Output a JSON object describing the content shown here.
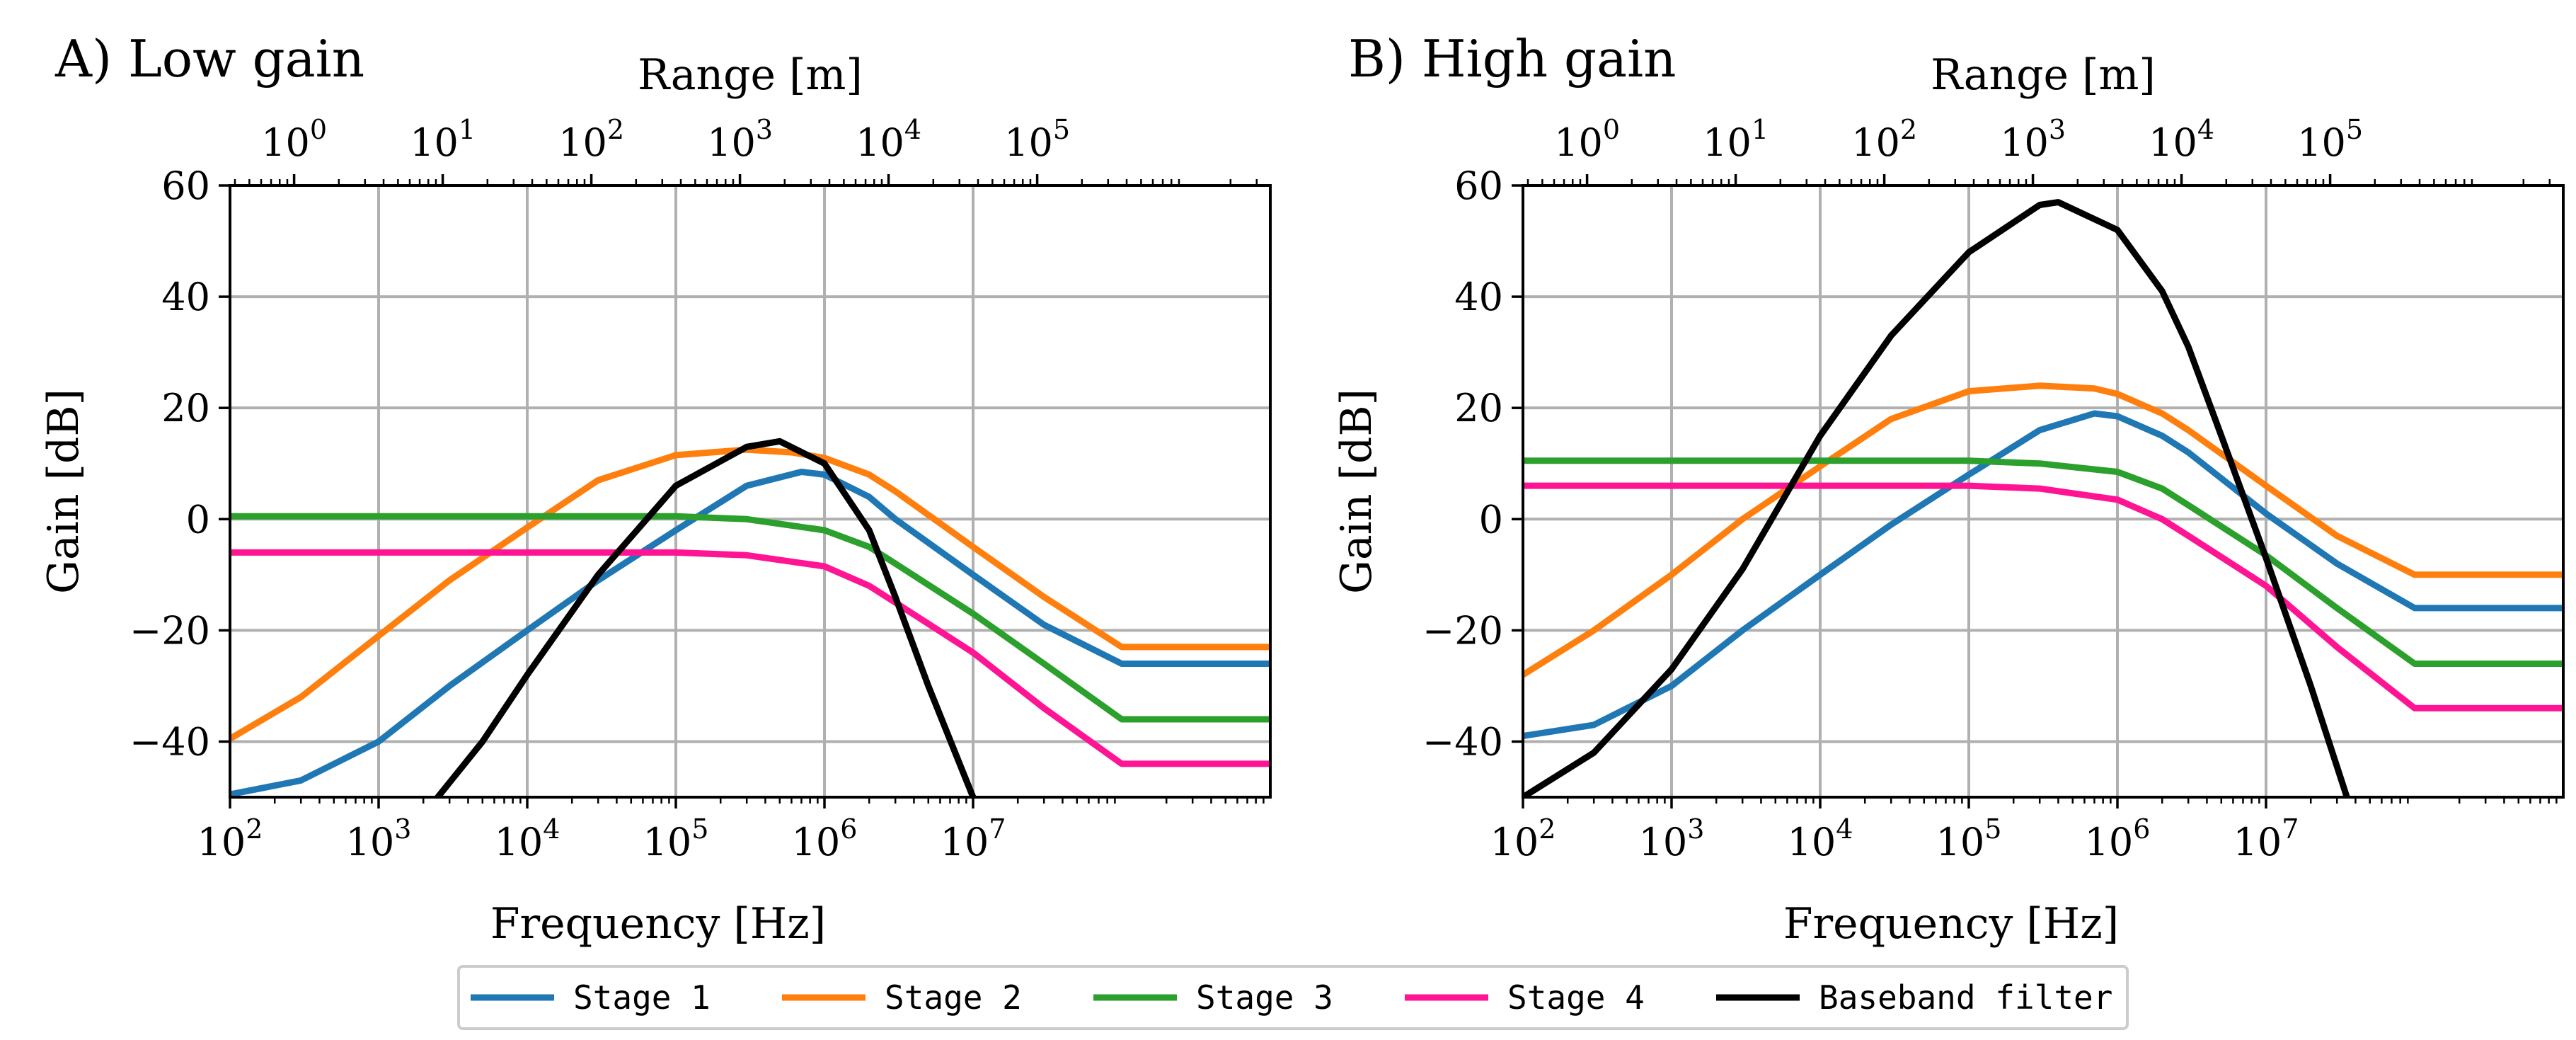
{
  "figure": {
    "legend_placement": "bottom-center, below both panels"
  },
  "series_colors": {
    "Stage 1": "#1f77b4",
    "Stage 2": "#ff7f0e",
    "Stage 3": "#2ca02c",
    "Stage 4": "#ff1493",
    "Baseband filter": "#000000"
  },
  "chart_data": [
    {
      "type": "line",
      "title": "A) Low gain",
      "xlabel": "Frequency [Hz]",
      "ylabel": "Gain [dB]",
      "top_xlabel": "Range [m]",
      "xscale": "log",
      "xlim": [
        100,
        1000000000
      ],
      "ylim": [
        -50,
        60
      ],
      "grid": true,
      "x_ticks": [
        {
          "base": "10",
          "exp": "2",
          "value": 100
        },
        {
          "base": "10",
          "exp": "3",
          "value": 1000
        },
        {
          "base": "10",
          "exp": "4",
          "value": 10000
        },
        {
          "base": "10",
          "exp": "5",
          "value": 100000
        },
        {
          "base": "10",
          "exp": "6",
          "value": 1000000
        },
        {
          "base": "10",
          "exp": "7",
          "value": 10000000
        }
      ],
      "y_ticks": [
        {
          "label": "60",
          "value": 60
        },
        {
          "label": "40",
          "value": 40
        },
        {
          "label": "20",
          "value": 20
        },
        {
          "label": "0",
          "value": 0
        },
        {
          "label": "−20",
          "value": -20
        },
        {
          "label": "−40",
          "value": -40
        }
      ],
      "top_ticks": [
        {
          "base": "10",
          "exp": "0",
          "freq": 270
        },
        {
          "base": "10",
          "exp": "1",
          "freq": 2700
        },
        {
          "base": "10",
          "exp": "2",
          "freq": 27000
        },
        {
          "base": "10",
          "exp": "3",
          "freq": 270000
        },
        {
          "base": "10",
          "exp": "4",
          "freq": 2700000
        },
        {
          "base": "10",
          "exp": "5",
          "freq": 27000000
        }
      ],
      "series": [
        {
          "name": "Stage 1",
          "x": [
            100,
            300,
            1000,
            3000,
            10000,
            30000,
            100000,
            300000,
            700000,
            1000000,
            2000000,
            3000000,
            10000000,
            30000000,
            100000000,
            1000000000
          ],
          "y": [
            -49.5,
            -47,
            -40,
            -30,
            -20,
            -11,
            -2,
            6,
            8.5,
            8,
            4,
            0,
            -10,
            -19,
            -26,
            -26
          ]
        },
        {
          "name": "Stage 2",
          "x": [
            100,
            300,
            1000,
            3000,
            10000,
            30000,
            100000,
            300000,
            600000,
            1000000,
            2000000,
            3000000,
            10000000,
            30000000,
            100000000,
            1000000000
          ],
          "y": [
            -39.5,
            -32,
            -21,
            -11,
            -1.5,
            7,
            11.5,
            12.5,
            12,
            11,
            8,
            5,
            -5,
            -14,
            -23,
            -23
          ]
        },
        {
          "name": "Stage 3",
          "x": [
            100,
            10000,
            100000,
            300000,
            1000000,
            2000000,
            3000000,
            10000000,
            30000000,
            100000000,
            1000000000
          ],
          "y": [
            0.5,
            0.5,
            0.5,
            0,
            -2,
            -5,
            -8,
            -17,
            -26,
            -36,
            -36
          ]
        },
        {
          "name": "Stage 4",
          "x": [
            100,
            10000,
            100000,
            300000,
            1000000,
            2000000,
            3000000,
            10000000,
            30000000,
            100000000,
            1000000000
          ],
          "y": [
            -6,
            -6,
            -6,
            -6.5,
            -8.5,
            -12,
            -15,
            -24,
            -34,
            -44,
            -44
          ]
        },
        {
          "name": "Baseband filter",
          "x": [
            2500,
            5000,
            10000,
            30000,
            100000,
            300000,
            500000,
            1000000,
            2000000,
            3000000,
            5000000,
            10000000
          ],
          "y": [
            -50,
            -40,
            -28,
            -10,
            6,
            13,
            14,
            10,
            -2,
            -14,
            -30,
            -50
          ]
        }
      ]
    },
    {
      "type": "line",
      "title": "B) High gain",
      "xlabel": "Frequency [Hz]",
      "ylabel": "Gain [dB]",
      "top_xlabel": "Range [m]",
      "xscale": "log",
      "xlim": [
        100,
        1000000000
      ],
      "ylim": [
        -50,
        60
      ],
      "grid": true,
      "x_ticks": [
        {
          "base": "10",
          "exp": "2",
          "value": 100
        },
        {
          "base": "10",
          "exp": "3",
          "value": 1000
        },
        {
          "base": "10",
          "exp": "4",
          "value": 10000
        },
        {
          "base": "10",
          "exp": "5",
          "value": 100000
        },
        {
          "base": "10",
          "exp": "6",
          "value": 1000000
        },
        {
          "base": "10",
          "exp": "7",
          "value": 10000000
        }
      ],
      "y_ticks": [
        {
          "label": "60",
          "value": 60
        },
        {
          "label": "40",
          "value": 40
        },
        {
          "label": "20",
          "value": 20
        },
        {
          "label": "0",
          "value": 0
        },
        {
          "label": "−20",
          "value": -20
        },
        {
          "label": "−40",
          "value": -40
        }
      ],
      "top_ticks": [
        {
          "base": "10",
          "exp": "0",
          "freq": 270
        },
        {
          "base": "10",
          "exp": "1",
          "freq": 2700
        },
        {
          "base": "10",
          "exp": "2",
          "freq": 27000
        },
        {
          "base": "10",
          "exp": "3",
          "freq": 270000
        },
        {
          "base": "10",
          "exp": "4",
          "freq": 2700000
        },
        {
          "base": "10",
          "exp": "5",
          "freq": 27000000
        }
      ],
      "series": [
        {
          "name": "Stage 1",
          "x": [
            100,
            300,
            1000,
            3000,
            10000,
            30000,
            100000,
            300000,
            700000,
            1000000,
            2000000,
            3000000,
            10000000,
            30000000,
            100000000,
            1000000000
          ],
          "y": [
            -39,
            -37,
            -30,
            -20,
            -10,
            -1,
            8,
            16,
            19,
            18.5,
            15,
            12,
            1,
            -8,
            -16,
            -16
          ]
        },
        {
          "name": "Stage 2",
          "x": [
            100,
            300,
            1000,
            3000,
            10000,
            30000,
            100000,
            300000,
            700000,
            1000000,
            2000000,
            3000000,
            10000000,
            30000000,
            100000000,
            1000000000
          ],
          "y": [
            -28,
            -20,
            -10,
            0,
            9.5,
            18,
            23,
            24,
            23.5,
            22.5,
            19,
            16,
            6,
            -3,
            -10,
            -10
          ]
        },
        {
          "name": "Stage 3",
          "x": [
            100,
            10000,
            100000,
            300000,
            1000000,
            2000000,
            3000000,
            10000000,
            30000000,
            100000000,
            1000000000
          ],
          "y": [
            10.5,
            10.5,
            10.5,
            10,
            8.5,
            5.5,
            2.5,
            -6.5,
            -16,
            -26,
            -26
          ]
        },
        {
          "name": "Stage 4",
          "x": [
            100,
            10000,
            100000,
            300000,
            1000000,
            2000000,
            3000000,
            10000000,
            30000000,
            100000000,
            1000000000
          ],
          "y": [
            6,
            6,
            6,
            5.5,
            3.5,
            0,
            -3,
            -12,
            -23,
            -34,
            -34
          ]
        },
        {
          "name": "Baseband filter",
          "x": [
            100,
            300,
            1000,
            3000,
            10000,
            30000,
            100000,
            300000,
            400000,
            1000000,
            2000000,
            3000000,
            5000000,
            10000000,
            20000000,
            35000000
          ],
          "y": [
            -50,
            -42,
            -27,
            -9,
            15,
            33,
            48,
            56.5,
            57,
            52,
            41,
            31,
            15,
            -7,
            -30,
            -50
          ]
        }
      ]
    }
  ],
  "legend": {
    "entries": [
      "Stage 1",
      "Stage 2",
      "Stage 3",
      "Stage 4",
      "Baseband filter"
    ]
  }
}
